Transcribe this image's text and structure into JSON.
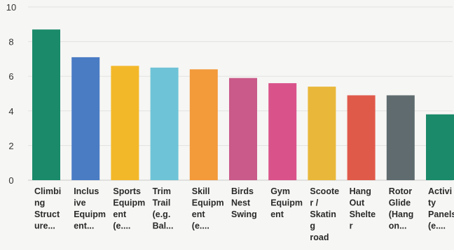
{
  "chart_data": {
    "type": "bar",
    "title": "",
    "xlabel": "",
    "ylabel": "",
    "ylim": [
      0,
      10
    ],
    "yticks": [
      0,
      2,
      4,
      6,
      8,
      10
    ],
    "grid": true,
    "legend": "none",
    "categories": [
      [
        "Climbi",
        "ng",
        "Struct",
        "ure..."
      ],
      [
        "Inclus",
        "ive",
        "Equipm",
        "ent..."
      ],
      [
        "Sports",
        "Equipm",
        "ent",
        "(e...."
      ],
      [
        "Trim",
        "Trail",
        "(e.g.",
        "Bal..."
      ],
      [
        "Skill",
        "Equipm",
        "ent",
        "(e...."
      ],
      [
        "Birds",
        "Nest",
        "Swing"
      ],
      [
        "Gym",
        "Equipm",
        "ent"
      ],
      [
        "Scoote",
        "r /",
        "Skatin",
        "g",
        "road"
      ],
      [
        "Hang",
        "Out",
        "Shelte",
        "r"
      ],
      [
        "Rotor",
        "Glide",
        "(Hang",
        "on..."
      ],
      [
        "Activi",
        "ty",
        "Panels",
        "(e...."
      ]
    ],
    "values": [
      8.7,
      7.1,
      6.6,
      6.5,
      6.4,
      5.9,
      5.6,
      5.4,
      4.9,
      4.9,
      3.8
    ],
    "colors": [
      "#1a8a6a",
      "#4a7cc4",
      "#f3b82a",
      "#6fc3d6",
      "#f39a3a",
      "#c95a8a",
      "#d9538a",
      "#e9b83a",
      "#e05a4a",
      "#5f6b6f",
      "#1a8a6a"
    ]
  }
}
